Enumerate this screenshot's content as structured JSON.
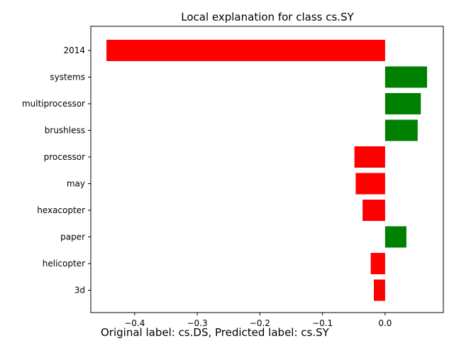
{
  "chart_data": {
    "type": "bar",
    "orientation": "horizontal",
    "title": "Local explanation for class cs.SY",
    "xlabel": "",
    "ylabel": "",
    "categories": [
      "2014",
      "systems",
      "multiprocessor",
      "brushless",
      "processor",
      "may",
      "hexacopter",
      "paper",
      "helicopter",
      "3d"
    ],
    "values": [
      -0.445,
      0.067,
      0.057,
      0.052,
      -0.049,
      -0.047,
      -0.036,
      0.034,
      -0.023,
      -0.018
    ],
    "positive_color": "#008000",
    "negative_color": "#ff0000",
    "xlim": [
      -0.47,
      0.093
    ],
    "xticks": [
      -0.4,
      -0.3,
      -0.2,
      -0.1,
      0.0
    ],
    "xtick_labels": [
      "−0.4",
      "−0.3",
      "−0.2",
      "−0.1",
      "0.0"
    ],
    "grid": false,
    "legend": "none"
  },
  "caption": "Original label: cs.DS, Predicted label: cs.SY"
}
